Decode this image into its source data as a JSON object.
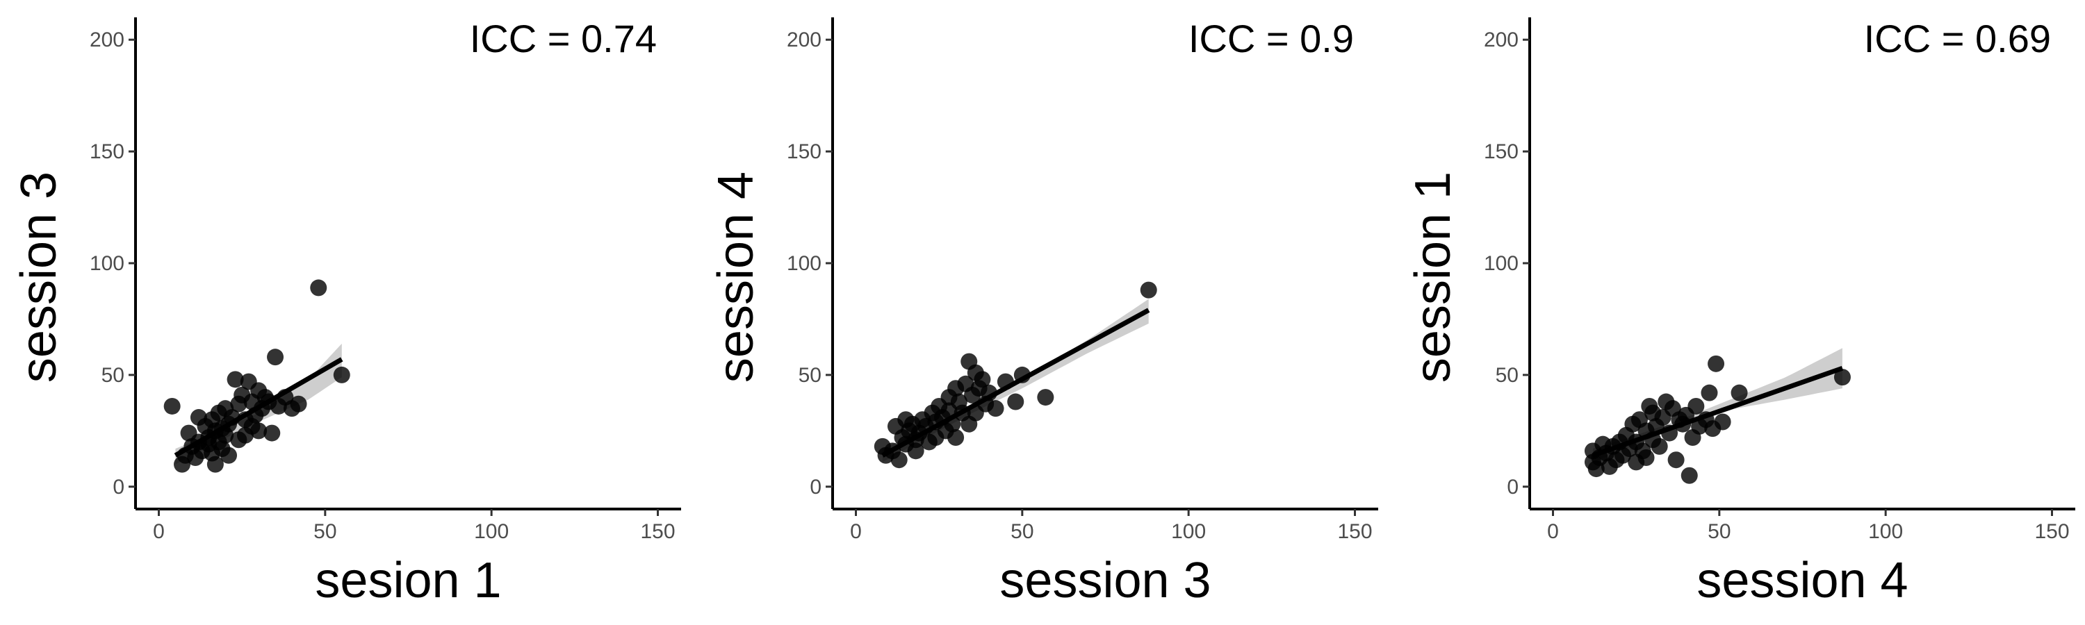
{
  "chart_data": [
    {
      "type": "scatter",
      "annotation": "ICC = 0.74",
      "xlabel": "sesion 1",
      "ylabel": "session 3",
      "xlim": [
        -7,
        157
      ],
      "ylim": [
        -10,
        210
      ],
      "xticks": [
        0,
        50,
        100,
        150
      ],
      "yticks": [
        0,
        50,
        100,
        150,
        200
      ],
      "grid": false,
      "fit_line": {
        "x": [
          5,
          55
        ],
        "y": [
          14,
          57
        ]
      },
      "confidence_band": {
        "x": [
          5,
          15,
          30,
          45,
          55
        ],
        "upper": [
          17,
          23,
          33,
          48,
          64
        ],
        "lower": [
          10,
          18,
          29,
          39,
          49
        ]
      },
      "points": [
        [
          4,
          36
        ],
        [
          7,
          10
        ],
        [
          8,
          14
        ],
        [
          9,
          24
        ],
        [
          10,
          18
        ],
        [
          11,
          13
        ],
        [
          12,
          31
        ],
        [
          12,
          20
        ],
        [
          13,
          16
        ],
        [
          14,
          27
        ],
        [
          15,
          22
        ],
        [
          15,
          19
        ],
        [
          16,
          30
        ],
        [
          16,
          15
        ],
        [
          17,
          25
        ],
        [
          17,
          10
        ],
        [
          18,
          33
        ],
        [
          18,
          20
        ],
        [
          19,
          17
        ],
        [
          19,
          26
        ],
        [
          20,
          35
        ],
        [
          20,
          23
        ],
        [
          21,
          28
        ],
        [
          21,
          14
        ],
        [
          22,
          31
        ],
        [
          23,
          48
        ],
        [
          24,
          37
        ],
        [
          24,
          21
        ],
        [
          25,
          41
        ],
        [
          26,
          30
        ],
        [
          26,
          23
        ],
        [
          27,
          47
        ],
        [
          28,
          38
        ],
        [
          28,
          27
        ],
        [
          29,
          32
        ],
        [
          30,
          43
        ],
        [
          30,
          25
        ],
        [
          31,
          35
        ],
        [
          32,
          40
        ],
        [
          33,
          38
        ],
        [
          34,
          24
        ],
        [
          35,
          58
        ],
        [
          36,
          36
        ],
        [
          38,
          40
        ],
        [
          40,
          35
        ],
        [
          42,
          37
        ],
        [
          48,
          89
        ],
        [
          55,
          50
        ]
      ]
    },
    {
      "type": "scatter",
      "annotation": "ICC = 0.9",
      "xlabel": "session 3",
      "ylabel": "session 4",
      "xlim": [
        -7,
        157
      ],
      "ylim": [
        -10,
        210
      ],
      "xticks": [
        0,
        50,
        100,
        150
      ],
      "yticks": [
        0,
        50,
        100,
        150,
        200
      ],
      "grid": false,
      "fit_line": {
        "x": [
          8,
          88
        ],
        "y": [
          14,
          79
        ]
      },
      "confidence_band": {
        "x": [
          8,
          20,
          35,
          50,
          70,
          88
        ],
        "upper": [
          17,
          25,
          36,
          48,
          66,
          84
        ],
        "lower": [
          11,
          21,
          33,
          44,
          60,
          73
        ]
      },
      "points": [
        [
          8,
          18
        ],
        [
          9,
          14
        ],
        [
          11,
          16
        ],
        [
          12,
          27
        ],
        [
          13,
          12
        ],
        [
          14,
          22
        ],
        [
          15,
          19
        ],
        [
          15,
          30
        ],
        [
          16,
          25
        ],
        [
          17,
          28
        ],
        [
          18,
          21
        ],
        [
          18,
          16
        ],
        [
          19,
          24
        ],
        [
          20,
          30
        ],
        [
          21,
          27
        ],
        [
          22,
          20
        ],
        [
          23,
          33
        ],
        [
          24,
          29
        ],
        [
          24,
          22
        ],
        [
          25,
          36
        ],
        [
          26,
          31
        ],
        [
          27,
          25
        ],
        [
          28,
          34
        ],
        [
          28,
          40
        ],
        [
          29,
          28
        ],
        [
          30,
          44
        ],
        [
          30,
          22
        ],
        [
          31,
          38
        ],
        [
          32,
          33
        ],
        [
          33,
          46
        ],
        [
          34,
          56
        ],
        [
          34,
          28
        ],
        [
          35,
          41
        ],
        [
          36,
          51
        ],
        [
          36,
          33
        ],
        [
          37,
          44
        ],
        [
          38,
          48
        ],
        [
          39,
          37
        ],
        [
          40,
          42
        ],
        [
          42,
          35
        ],
        [
          45,
          47
        ],
        [
          48,
          38
        ],
        [
          50,
          50
        ],
        [
          57,
          40
        ],
        [
          88,
          88
        ]
      ]
    },
    {
      "type": "scatter",
      "annotation": "ICC = 0.69",
      "xlabel": "session 4",
      "ylabel": "session 1",
      "xlim": [
        -7,
        157
      ],
      "ylim": [
        -10,
        210
      ],
      "xticks": [
        0,
        50,
        100,
        150
      ],
      "yticks": [
        0,
        50,
        100,
        150,
        200
      ],
      "grid": false,
      "fit_line": {
        "x": [
          12,
          87
        ],
        "y": [
          14,
          53
        ]
      },
      "confidence_band": {
        "x": [
          12,
          25,
          40,
          55,
          70,
          87
        ],
        "upper": [
          17,
          23,
          31,
          40,
          49,
          62
        ],
        "lower": [
          11,
          19,
          28,
          35,
          39,
          44
        ]
      },
      "points": [
        [
          12,
          11
        ],
        [
          12,
          16
        ],
        [
          13,
          8
        ],
        [
          14,
          13
        ],
        [
          15,
          19
        ],
        [
          16,
          15
        ],
        [
          17,
          9
        ],
        [
          18,
          18
        ],
        [
          19,
          12
        ],
        [
          20,
          20
        ],
        [
          21,
          14
        ],
        [
          22,
          23
        ],
        [
          23,
          17
        ],
        [
          24,
          28
        ],
        [
          25,
          11
        ],
        [
          25,
          20
        ],
        [
          26,
          30
        ],
        [
          27,
          16
        ],
        [
          28,
          25
        ],
        [
          28,
          13
        ],
        [
          29,
          36
        ],
        [
          30,
          21
        ],
        [
          30,
          33
        ],
        [
          31,
          27
        ],
        [
          32,
          18
        ],
        [
          33,
          31
        ],
        [
          34,
          38
        ],
        [
          35,
          24
        ],
        [
          36,
          35
        ],
        [
          37,
          12
        ],
        [
          38,
          30
        ],
        [
          39,
          28
        ],
        [
          40,
          32
        ],
        [
          41,
          5
        ],
        [
          42,
          22
        ],
        [
          43,
          36
        ],
        [
          44,
          27
        ],
        [
          46,
          30
        ],
        [
          47,
          42
        ],
        [
          48,
          26
        ],
        [
          49,
          55
        ],
        [
          51,
          29
        ],
        [
          56,
          42
        ],
        [
          87,
          49
        ]
      ]
    }
  ]
}
